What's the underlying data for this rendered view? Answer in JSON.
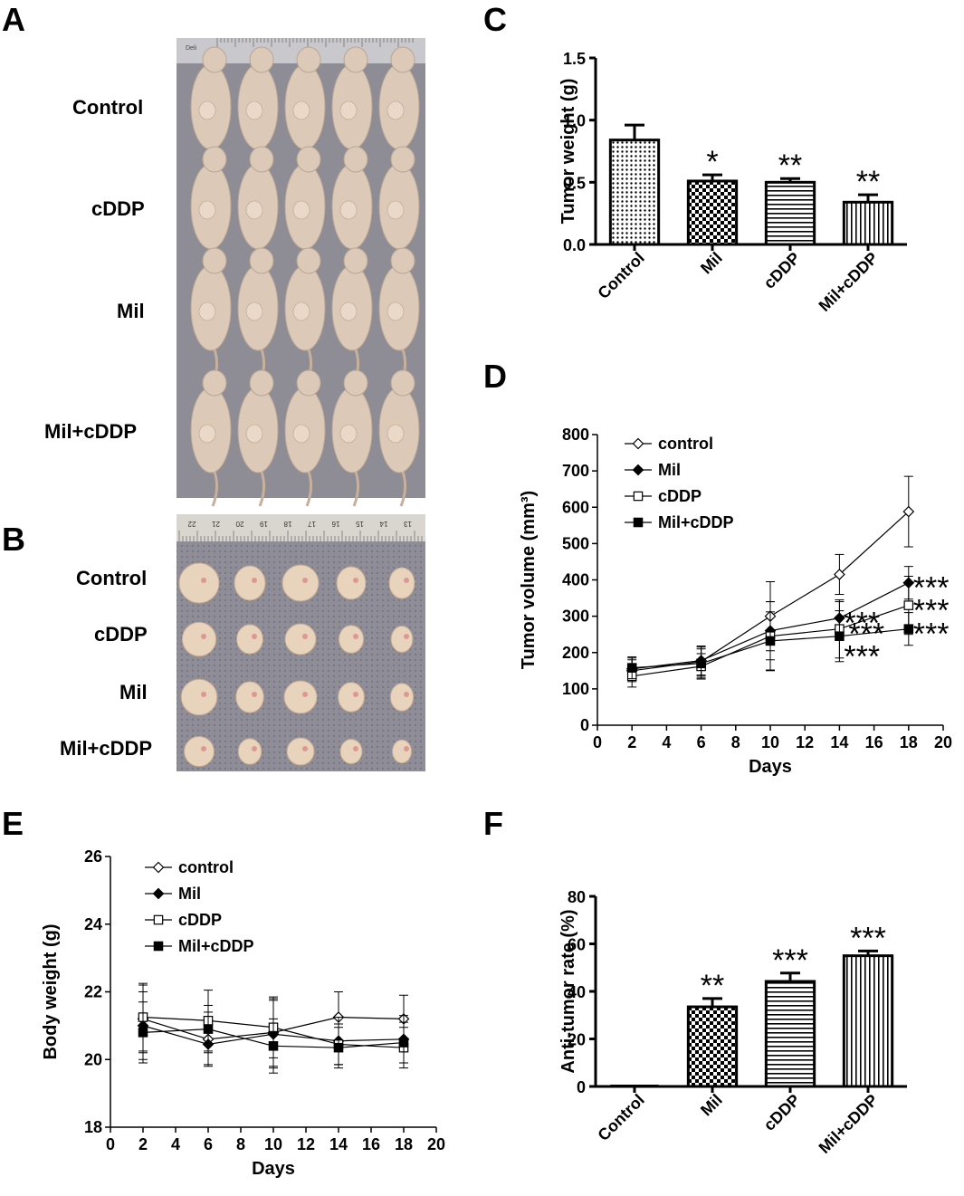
{
  "panels": {
    "A": "A",
    "B": "B",
    "C": "C",
    "D": "D",
    "E": "E",
    "F": "F"
  },
  "photo_A": {
    "row_labels": [
      "Control",
      "cDDP",
      "Mil",
      "Mil+cDDP"
    ],
    "ruler_text": "Deli"
  },
  "photo_B": {
    "row_labels": [
      "Control",
      "cDDP",
      "Mil",
      "Mil+cDDP"
    ],
    "ruler_numbers": [
      "22",
      "21",
      "20",
      "19",
      "18",
      "17",
      "16",
      "15",
      "14",
      "13"
    ]
  },
  "colors": {
    "mouse_skin": "#dcc9b8",
    "mat": "#8e8c95",
    "tumor": "#e8d3bc",
    "tray": "#6f6d77"
  },
  "chart_data": [
    {
      "id": "C",
      "type": "bar",
      "ylabel": "Tumor weight (g)",
      "categories": [
        "Control",
        "Mil",
        "cDDP",
        "Mil+cDDP"
      ],
      "values": [
        0.84,
        0.51,
        0.5,
        0.34
      ],
      "errors": [
        0.12,
        0.05,
        0.03,
        0.06
      ],
      "significance": [
        "",
        "*",
        "**",
        "**"
      ],
      "patterns": [
        "dots",
        "checker",
        "horizontal",
        "vertical"
      ],
      "ylim": [
        0,
        1.5
      ],
      "yticks": [
        "0.0",
        "0.5",
        "1.0",
        "1.5"
      ]
    },
    {
      "id": "D",
      "type": "line",
      "xlabel": "Days",
      "ylabel": "Tumor volume (mm³)",
      "xlim": [
        0,
        20
      ],
      "ylim": [
        0,
        800
      ],
      "xticks": [
        "0",
        "2",
        "4",
        "6",
        "8",
        "10",
        "12",
        "14",
        "16",
        "18",
        "20"
      ],
      "yticks": [
        "0",
        "100",
        "200",
        "300",
        "400",
        "500",
        "600",
        "700",
        "800"
      ],
      "x": [
        2,
        6,
        10,
        14,
        18
      ],
      "series": [
        {
          "name": "control",
          "marker": "open-diamond",
          "values": [
            150,
            175,
            300,
            415,
            588
          ],
          "errors": [
            30,
            40,
            95,
            55,
            97
          ]
        },
        {
          "name": "Mil",
          "marker": "filled-diamond",
          "values": [
            155,
            178,
            260,
            295,
            392
          ],
          "errors": [
            30,
            40,
            80,
            45,
            45
          ]
        },
        {
          "name": "cDDP",
          "marker": "open-square",
          "values": [
            135,
            162,
            245,
            265,
            330
          ],
          "errors": [
            30,
            35,
            95,
            80,
            80
          ]
        },
        {
          "name": "Mil+cDDP",
          "marker": "filled-square",
          "values": [
            158,
            170,
            232,
            245,
            265
          ],
          "errors": [
            30,
            40,
            80,
            70,
            45
          ]
        }
      ],
      "annotations": [
        "***",
        "***",
        "***",
        "***",
        "***",
        "***"
      ]
    },
    {
      "id": "E",
      "type": "line",
      "xlabel": "Days",
      "ylabel": "Body weight (g)",
      "xlim": [
        0,
        20
      ],
      "ylim": [
        18,
        26
      ],
      "xticks": [
        "0",
        "2",
        "4",
        "6",
        "8",
        "10",
        "12",
        "14",
        "16",
        "18",
        "20"
      ],
      "yticks": [
        "18",
        "20",
        "22",
        "24",
        "26"
      ],
      "x": [
        2,
        6,
        10,
        14,
        18
      ],
      "series": [
        {
          "name": "control",
          "marker": "open-diamond",
          "values": [
            21.2,
            20.6,
            20.8,
            21.25,
            21.2
          ],
          "errors": [
            1.0,
            0.8,
            1.0,
            0.75,
            0.7
          ]
        },
        {
          "name": "Mil",
          "marker": "filled-diamond",
          "values": [
            21.0,
            20.45,
            20.75,
            20.55,
            20.6
          ],
          "errors": [
            1.0,
            0.6,
            1.0,
            0.7,
            0.7
          ]
        },
        {
          "name": "cDDP",
          "marker": "open-square",
          "values": [
            21.25,
            21.15,
            20.95,
            20.45,
            20.35
          ],
          "errors": [
            1.0,
            0.9,
            0.9,
            0.6,
            0.6
          ]
        },
        {
          "name": "Mil+cDDP",
          "marker": "filled-square",
          "values": [
            20.8,
            20.9,
            20.4,
            20.35,
            20.5
          ],
          "errors": [
            0.9,
            0.7,
            0.8,
            0.6,
            0.6
          ]
        }
      ]
    },
    {
      "id": "F",
      "type": "bar",
      "ylabel": "Anti-tumor rate (%)",
      "categories": [
        "Control",
        "Mil",
        "cDDP",
        "Mil+cDDP"
      ],
      "values": [
        0,
        33.5,
        44.2,
        55.0
      ],
      "errors": [
        0,
        3.5,
        3.5,
        2.0
      ],
      "significance": [
        "",
        "**",
        "***",
        "***"
      ],
      "patterns": [
        "dots",
        "checker",
        "horizontal",
        "vertical"
      ],
      "ylim": [
        0,
        80
      ],
      "yticks": [
        "0",
        "20",
        "40",
        "60",
        "80"
      ]
    }
  ]
}
